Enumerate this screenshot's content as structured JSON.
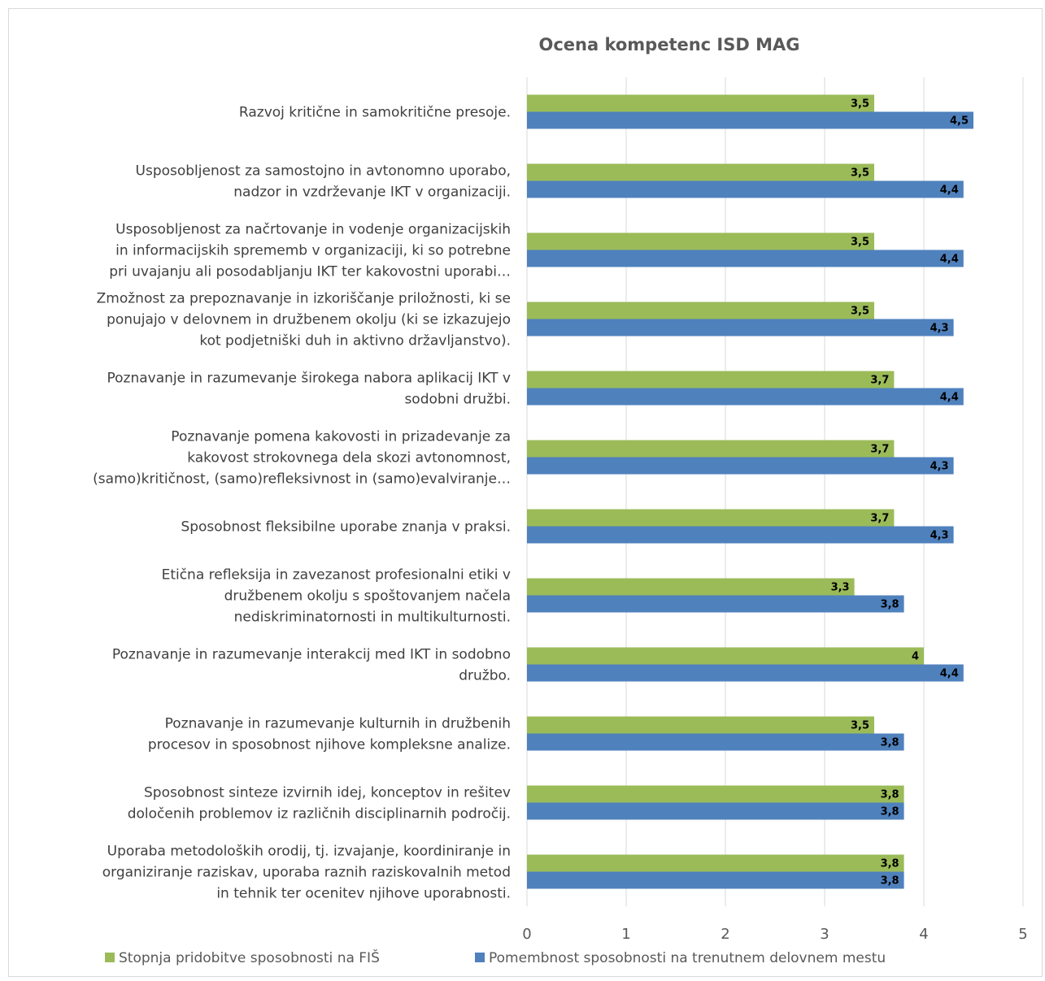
{
  "chart_data": {
    "type": "bar",
    "orientation": "horizontal",
    "title": "Ocena kompetenc ISD MAG",
    "xlim": [
      0,
      5
    ],
    "x_ticks": [
      "0",
      "1",
      "2",
      "3",
      "4",
      "5"
    ],
    "grid": "vertical",
    "legend_position": "bottom",
    "categories": [
      [
        "Razvoj kritične in samokritične presoje."
      ],
      [
        "Usposobljenost za samostojno in avtonomno uporabo,",
        "nadzor in vzdrževanje IKT v organizaciji."
      ],
      [
        "Usposobljenost za načrtovanje in vodenje organizacijskih",
        "in informacijskih sprememb v organizaciji, ki so potrebne",
        "pri uvajanju ali posodabljanju IKT ter kakovostni uporabi…"
      ],
      [
        "Zmožnost za prepoznavanje in izkoriščanje priložnosti, ki se",
        "ponujajo v delovnem in družbenem okolju (ki se izkazujejo",
        "kot podjetniški duh in aktivno državljanstvo)."
      ],
      [
        "Poznavanje in razumevanje širokega nabora aplikacij IKT v",
        "sodobni družbi."
      ],
      [
        "Poznavanje pomena kakovosti in prizadevanje za",
        "kakovost strokovnega dela skozi avtonomnost,",
        "(samo)kritičnost, (samo)refleksivnost in (samo)evalviranje…"
      ],
      [
        "Sposobnost fleksibilne uporabe znanja v praksi."
      ],
      [
        "Etična refleksija in zavezanost profesionalni etiki v",
        "družbenem okolju s spoštovanjem načela",
        "nediskriminatornosti in multikulturnosti."
      ],
      [
        "Poznavanje in razumevanje interakcij med IKT in sodobno",
        "družbo."
      ],
      [
        "Poznavanje in razumevanje kulturnih in družbenih",
        "procesov in sposobnost njihove kompleksne analize."
      ],
      [
        "Sposobnost sinteze izvirnih idej, konceptov in rešitev",
        "določenih problemov iz različnih disciplinarnih področij."
      ],
      [
        "Uporaba metodoloških orodij, tj. izvajanje, koordiniranje in",
        "organiziranje raziskav, uporaba raznih raziskovalnih metod",
        "in tehnik ter ocenitev njihove uporabnosti."
      ]
    ],
    "series": [
      {
        "name": "Stopnja pridobitve sposobnosti na FIŠ",
        "color": "#9bbb59",
        "values": [
          3.5,
          3.5,
          3.5,
          3.5,
          3.7,
          3.7,
          3.7,
          3.3,
          4,
          3.5,
          3.8,
          3.8
        ],
        "labels": [
          "3,5",
          "3,5",
          "3,5",
          "3,5",
          "3,7",
          "3,7",
          "3,7",
          "3,3",
          "4",
          "3,5",
          "3,8",
          "3,8"
        ]
      },
      {
        "name": "Pomembnost sposobnosti na trenutnem delovnem mestu",
        "color": "#4f81bd",
        "values": [
          4.5,
          4.4,
          4.4,
          4.3,
          4.4,
          4.3,
          4.3,
          3.8,
          4.4,
          3.8,
          3.8,
          3.8
        ],
        "labels": [
          "4,5",
          "4,4",
          "4,4",
          "4,3",
          "4,4",
          "4,3",
          "4,3",
          "3,8",
          "4,4",
          "3,8",
          "3,8",
          "3,8"
        ]
      }
    ]
  }
}
